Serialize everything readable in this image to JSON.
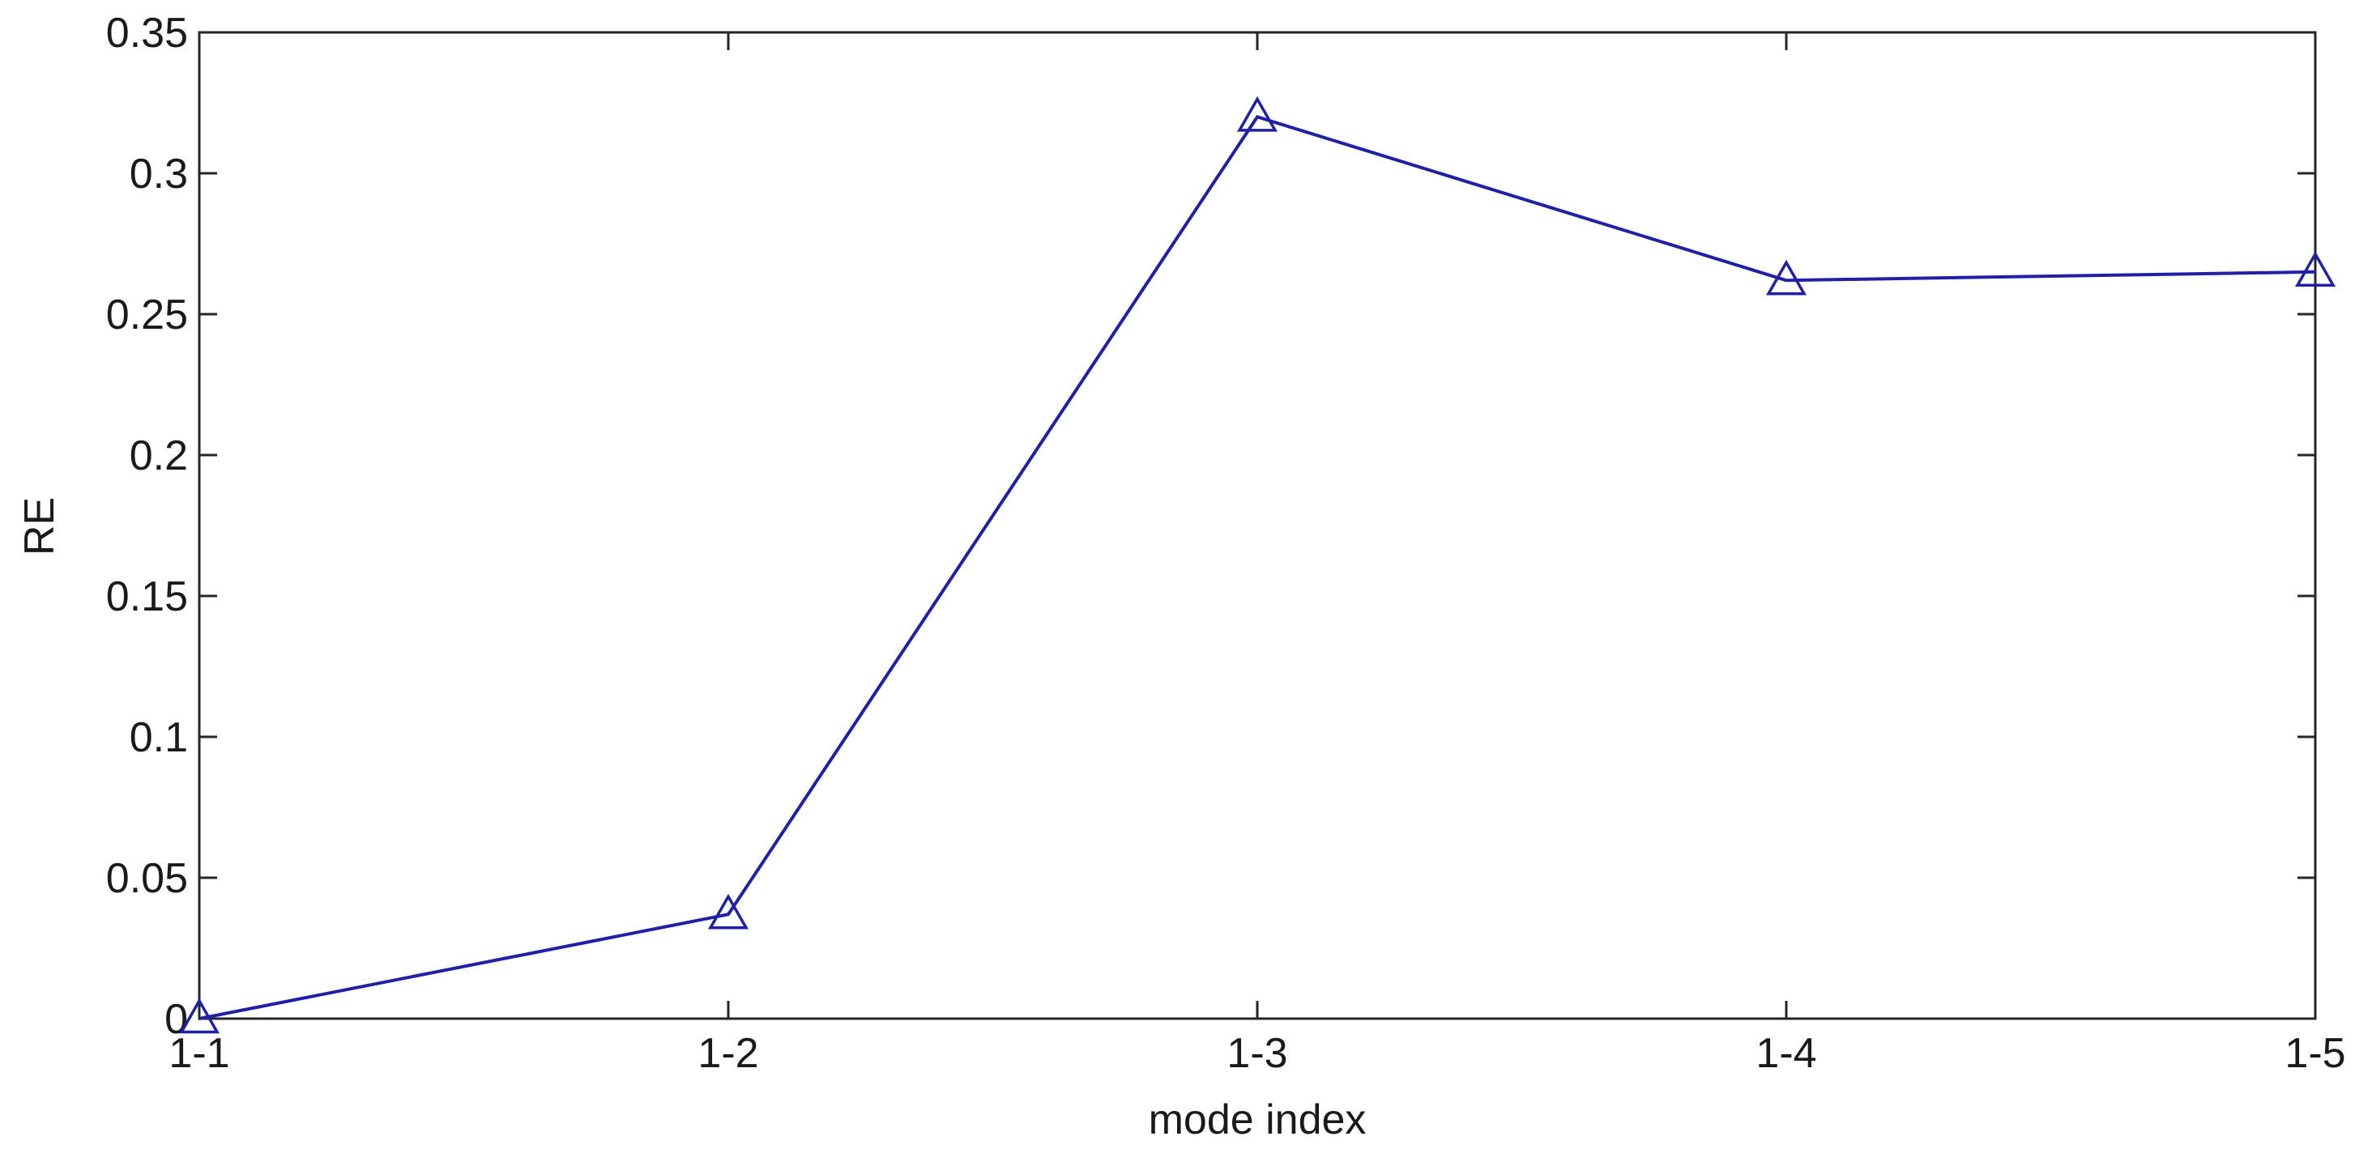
{
  "chart_data": {
    "type": "line",
    "categories": [
      "1-1",
      "1-2",
      "1-3",
      "1-4",
      "1-5"
    ],
    "series": [
      {
        "values": [
          0.0,
          0.037,
          0.32,
          0.262,
          0.265
        ]
      }
    ],
    "xlabel": "mode index",
    "ylabel": "RE",
    "ylim": [
      0,
      0.35
    ],
    "yticks": [
      0,
      0.05,
      0.1,
      0.15,
      0.2,
      0.25,
      0.3,
      0.35
    ],
    "ytick_labels": [
      "0",
      "0.05",
      "0.1",
      "0.15",
      "0.2",
      "0.25",
      "0.3",
      "0.35"
    ],
    "marker": "triangle-open",
    "line_color": "#1f1fa8",
    "grid": false,
    "legend": "none"
  }
}
